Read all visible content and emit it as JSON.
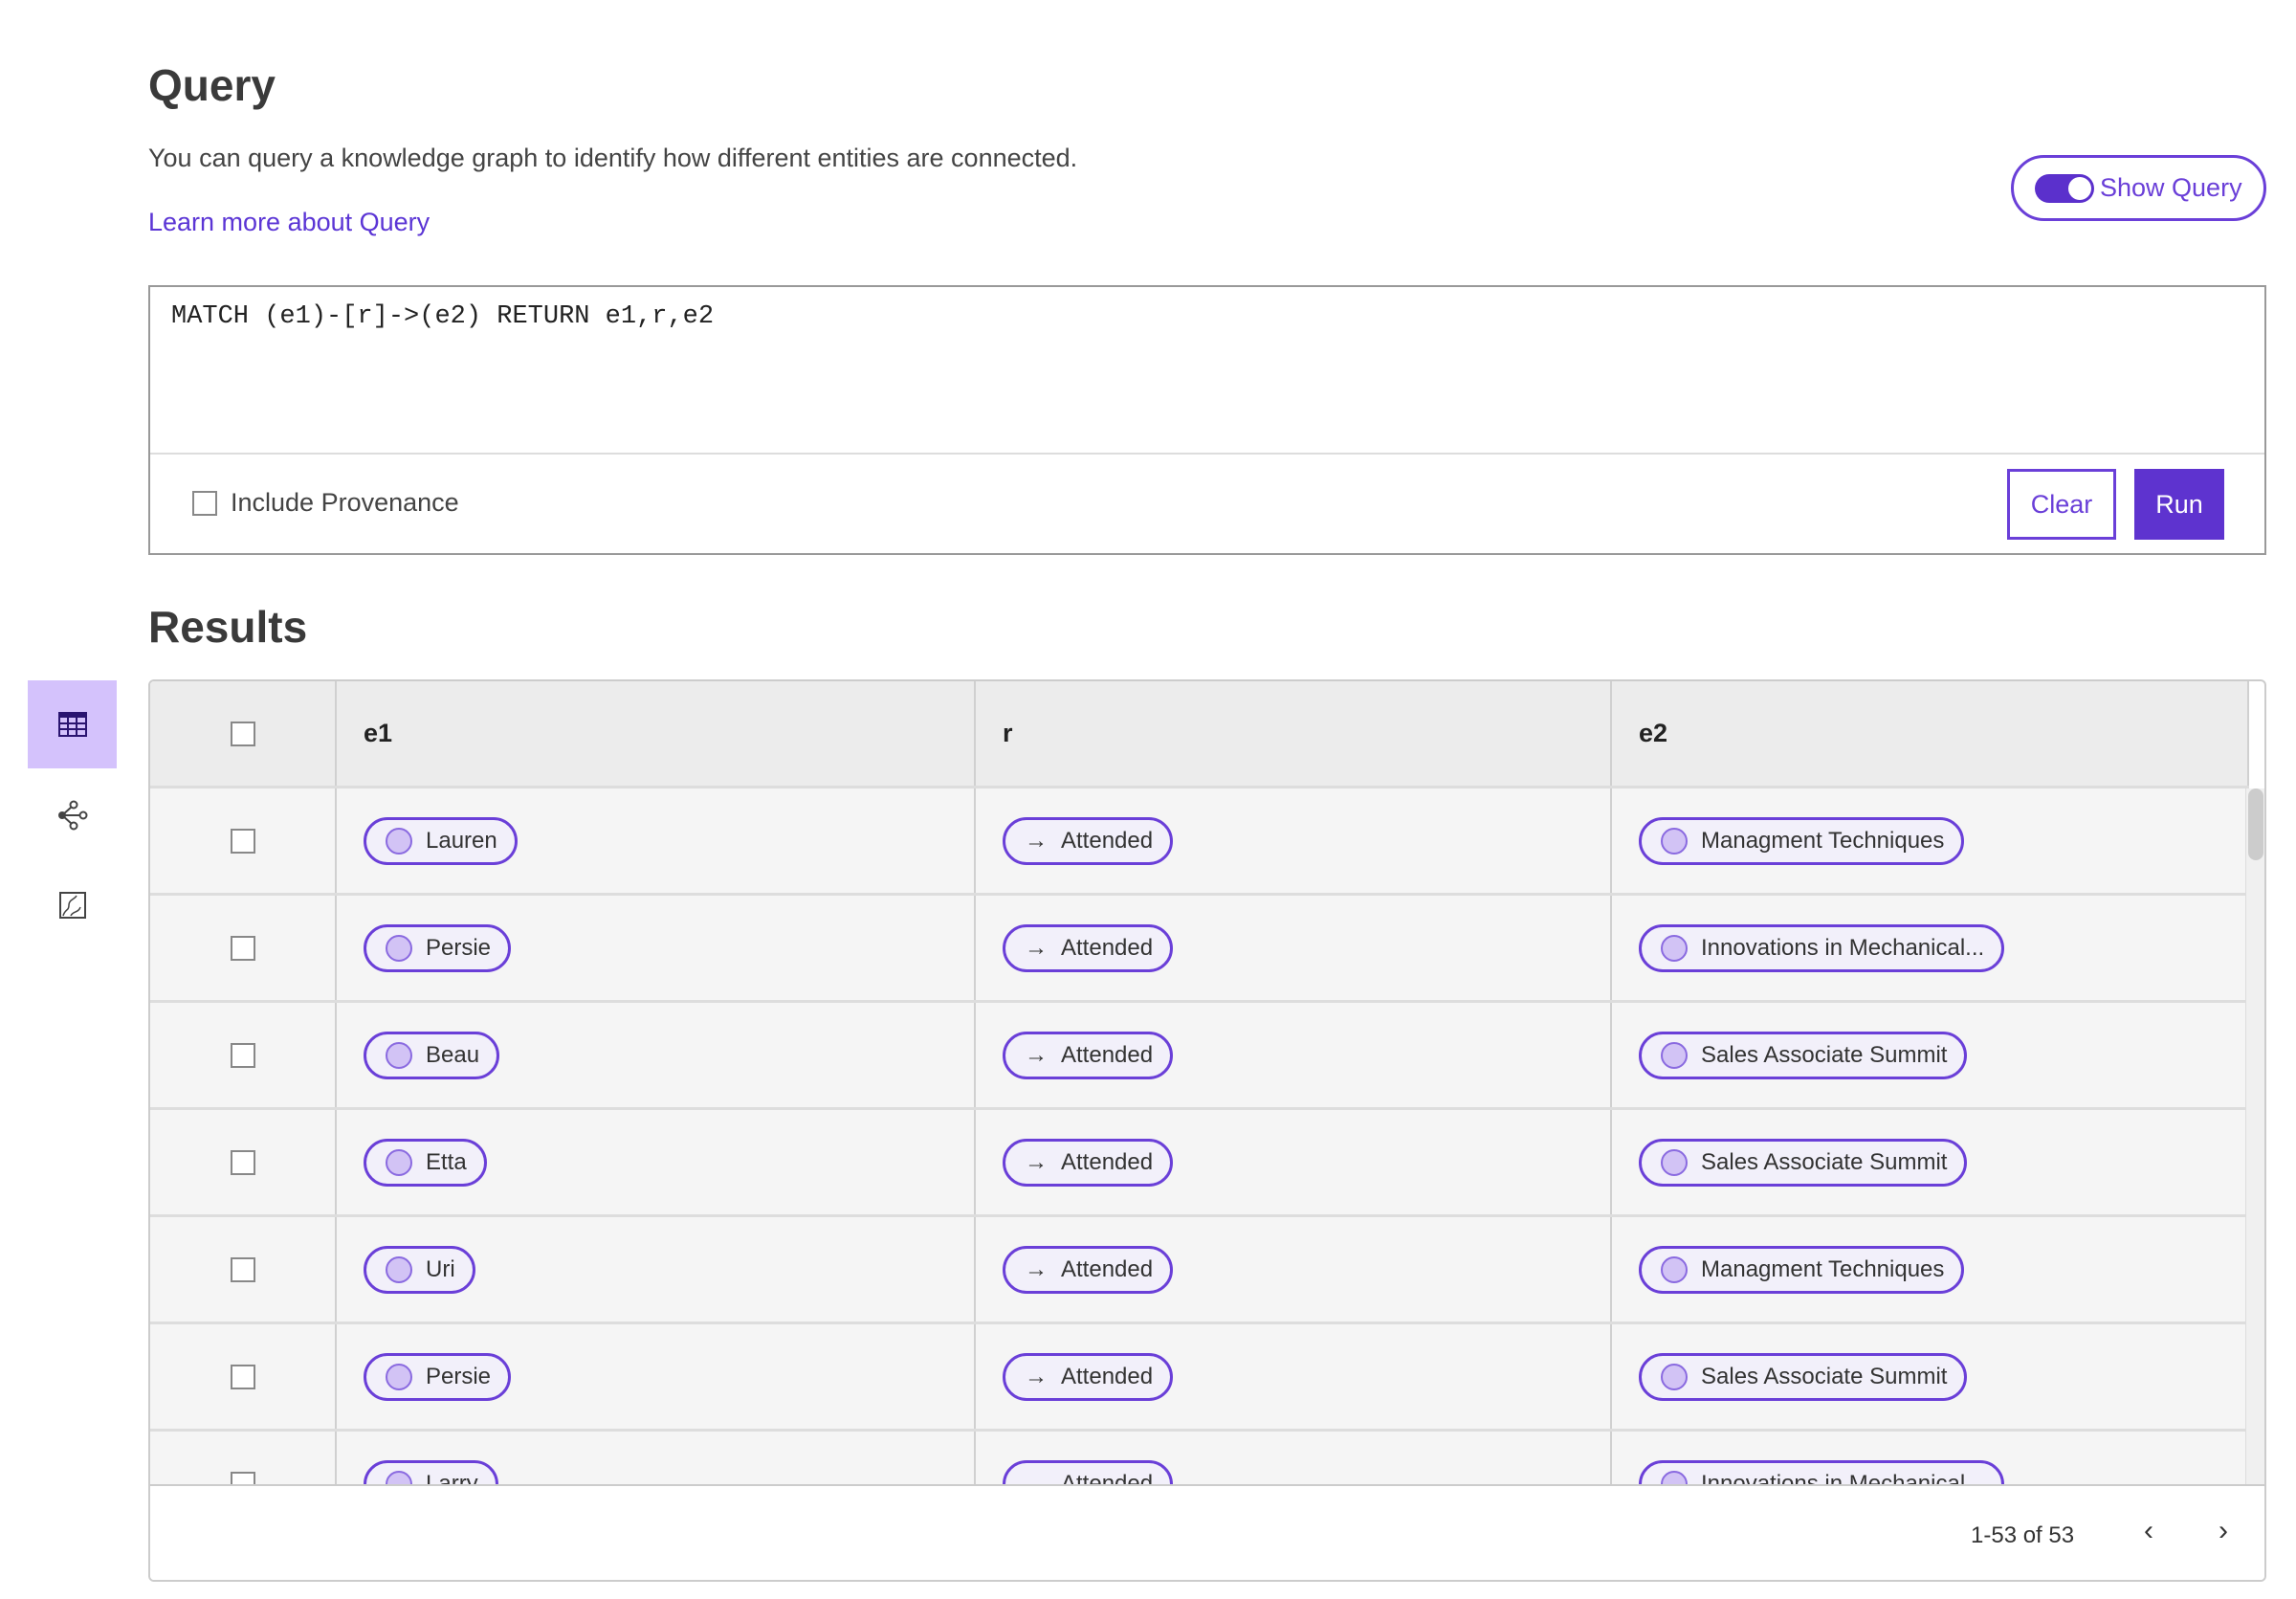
{
  "header": {
    "title": "Query",
    "description": "You can query a knowledge graph to identify how different entities are connected.",
    "learn_more": "Learn more about Query",
    "show_query_label": "Show Query",
    "show_query_on": true
  },
  "query": {
    "text": "MATCH (e1)-[r]->(e2) RETURN e1,r,e2",
    "include_provenance_label": "Include Provenance",
    "include_provenance": false,
    "clear_label": "Clear",
    "run_label": "Run"
  },
  "results": {
    "title": "Results",
    "columns": [
      "e1",
      "r",
      "e2"
    ],
    "rows": [
      {
        "e1": "Lauren",
        "r": "Attended",
        "e2": "Managment Techniques"
      },
      {
        "e1": "Persie",
        "r": "Attended",
        "e2": "Innovations in Mechanical..."
      },
      {
        "e1": "Beau",
        "r": "Attended",
        "e2": "Sales Associate Summit"
      },
      {
        "e1": "Etta",
        "r": "Attended",
        "e2": "Sales Associate Summit"
      },
      {
        "e1": "Uri",
        "r": "Attended",
        "e2": "Managment Techniques"
      },
      {
        "e1": "Persie",
        "r": "Attended",
        "e2": "Sales Associate Summit"
      },
      {
        "e1": "Larry",
        "r": "Attended",
        "e2": "Innovations in Mechanical..."
      }
    ],
    "pagination": "1-53 of 53"
  },
  "sidebar": {
    "items": [
      {
        "icon": "table-icon",
        "active": true
      },
      {
        "icon": "graph-icon",
        "active": false
      },
      {
        "icon": "chart-icon",
        "active": false
      }
    ]
  },
  "colors": {
    "accent": "#5e33cf",
    "active_bg": "#d4c2fc",
    "pill_bg": "#f2f0fa"
  }
}
